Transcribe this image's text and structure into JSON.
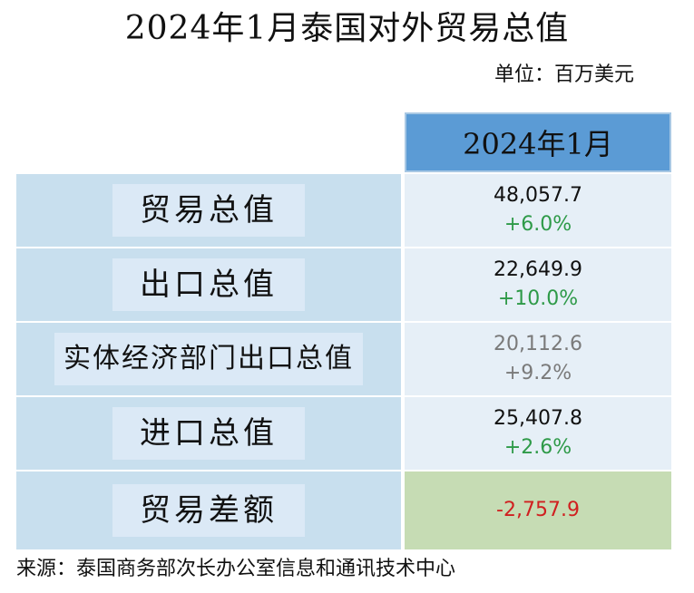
{
  "title": "2024年1月泰国对外贸易总值",
  "unit": "单位：百万美元",
  "table": {
    "header": "2024年1月",
    "rows": [
      {
        "label": "贸易总值",
        "value": "48,057.7",
        "change": "+6.0%"
      },
      {
        "label": "出口总值",
        "value": "22,649.9",
        "change": "+10.0%"
      },
      {
        "label": "实体经济部门出口总值",
        "value": "20,112.6",
        "change": "+9.2%"
      },
      {
        "label": "进口总值",
        "value": "25,407.8",
        "change": "+2.6%"
      },
      {
        "label": "贸易差额",
        "value": "-2,757.9"
      }
    ]
  },
  "colors": {
    "header_bg": "#5b9bd5",
    "label_bg": "#c8dfee",
    "value_bg": "#e6eff7",
    "balance_bg": "#c6dcb4",
    "positive_change": "#2e9a48",
    "negative_value": "#d02020"
  },
  "source": "来源：泰国商务部次长办公室信息和通讯技术中心"
}
